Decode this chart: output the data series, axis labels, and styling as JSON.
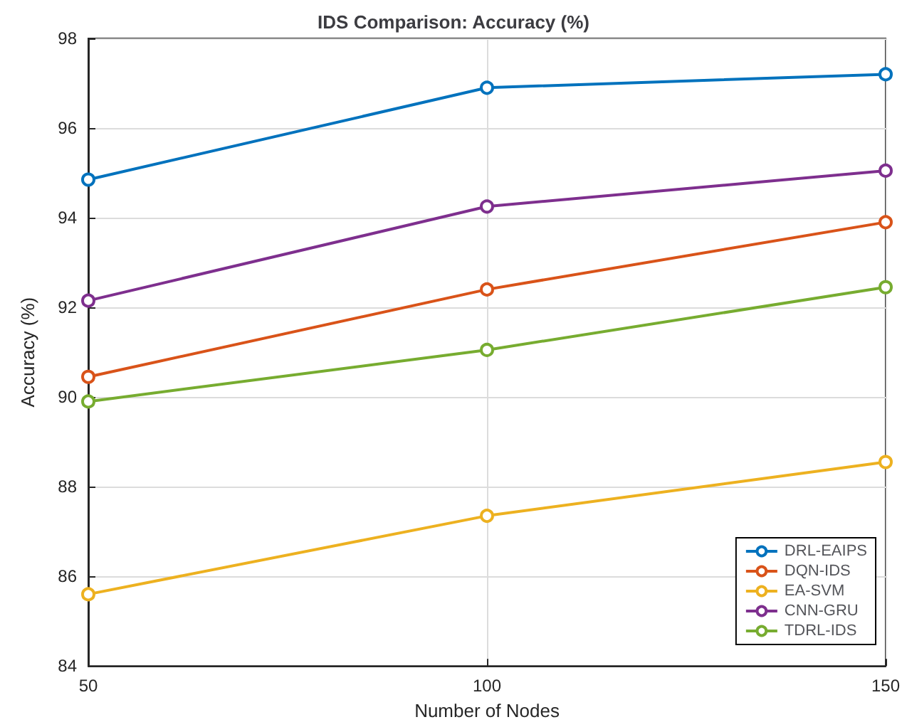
{
  "chart_data": {
    "type": "line",
    "title": "IDS Comparison: Accuracy (%)",
    "xlabel": "Number of Nodes",
    "ylabel": "Accuracy (%)",
    "x": [
      50,
      100,
      150
    ],
    "series": [
      {
        "name": "DRL-EAIPS",
        "color": "#0072bd",
        "values": [
          94.85,
          96.9,
          97.2
        ]
      },
      {
        "name": "DQN-IDS",
        "color": "#d95319",
        "values": [
          90.45,
          92.4,
          93.9
        ]
      },
      {
        "name": "EA-SVM",
        "color": "#edb120",
        "values": [
          85.6,
          87.35,
          88.55
        ]
      },
      {
        "name": "CNN-GRU",
        "color": "#7e2f8e",
        "values": [
          92.15,
          94.25,
          95.05
        ]
      },
      {
        "name": "TDRL-IDS",
        "color": "#77ac30",
        "values": [
          89.9,
          91.05,
          92.45
        ]
      }
    ],
    "xlim": [
      50,
      150
    ],
    "xticks": [
      50,
      100,
      150
    ],
    "ylim": [
      84,
      98
    ],
    "yticks": [
      84,
      86,
      88,
      90,
      92,
      94,
      96,
      98
    ],
    "grid": true,
    "legend": "bottom right",
    "marker": "circle",
    "line_style": "solid"
  }
}
